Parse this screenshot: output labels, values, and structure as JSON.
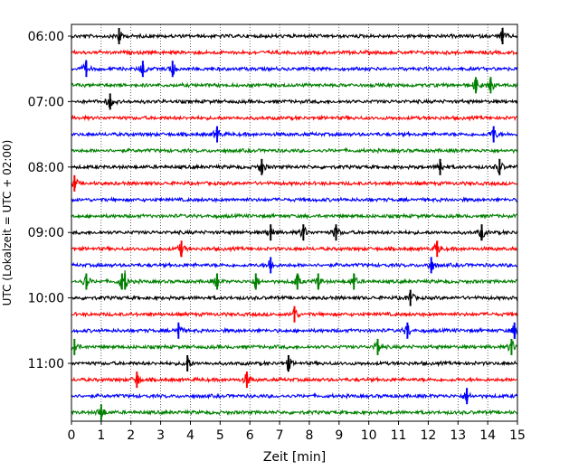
{
  "chart_data": {
    "type": "line",
    "title": "",
    "xlabel": "Zeit  [min]",
    "ylabel": "UTC (Lokalzeit = UTC + 02:00)",
    "xlim": [
      0,
      15
    ],
    "x_ticks": [
      "0",
      "1",
      "2",
      "3",
      "4",
      "5",
      "6",
      "7",
      "8",
      "9",
      "10",
      "11",
      "12",
      "13",
      "14",
      "15"
    ],
    "y_ticks": [
      "06:00",
      "07:00",
      "08:00",
      "09:00",
      "10:00",
      "11:00"
    ],
    "grid": "vertical dotted",
    "colors": [
      "#000000",
      "#ff0000",
      "#0000ff",
      "#008000"
    ],
    "rows": [
      {
        "time": "06:00",
        "color": "#000000",
        "events": [
          1.6,
          14.5
        ]
      },
      {
        "time": "06:15",
        "color": "#ff0000",
        "events": []
      },
      {
        "time": "06:30",
        "color": "#0000ff",
        "events": [
          0.5,
          2.4,
          3.4
        ]
      },
      {
        "time": "06:45",
        "color": "#008000",
        "events": [
          13.6,
          14.1
        ]
      },
      {
        "time": "07:00",
        "color": "#000000",
        "events": [
          1.3
        ]
      },
      {
        "time": "07:15",
        "color": "#ff0000",
        "events": []
      },
      {
        "time": "07:30",
        "color": "#0000ff",
        "events": [
          4.9,
          14.2
        ]
      },
      {
        "time": "07:45",
        "color": "#008000",
        "events": []
      },
      {
        "time": "08:00",
        "color": "#000000",
        "events": [
          6.4,
          12.4,
          14.4
        ]
      },
      {
        "time": "08:15",
        "color": "#ff0000",
        "events": [
          0.1
        ]
      },
      {
        "time": "08:30",
        "color": "#0000ff",
        "events": []
      },
      {
        "time": "08:45",
        "color": "#008000",
        "events": []
      },
      {
        "time": "09:00",
        "color": "#000000",
        "events": [
          6.7,
          7.8,
          8.9,
          13.8
        ]
      },
      {
        "time": "09:15",
        "color": "#ff0000",
        "events": [
          3.7,
          12.3
        ]
      },
      {
        "time": "09:30",
        "color": "#0000ff",
        "events": [
          6.7,
          12.1
        ]
      },
      {
        "time": "09:45",
        "color": "#008000",
        "events": [
          0.5,
          1.7,
          1.8,
          4.9,
          6.2,
          7.6,
          8.3,
          9.5
        ]
      },
      {
        "time": "10:00",
        "color": "#000000",
        "events": [
          11.4
        ]
      },
      {
        "time": "10:15",
        "color": "#ff0000",
        "events": [
          7.5
        ]
      },
      {
        "time": "10:30",
        "color": "#0000ff",
        "events": [
          3.6,
          11.3,
          14.9
        ]
      },
      {
        "time": "10:45",
        "color": "#008000",
        "events": [
          0.1,
          10.3,
          14.8
        ]
      },
      {
        "time": "11:00",
        "color": "#000000",
        "events": [
          3.9,
          7.3
        ]
      },
      {
        "time": "11:15",
        "color": "#ff0000",
        "events": [
          2.2,
          5.9
        ]
      },
      {
        "time": "11:30",
        "color": "#0000ff",
        "events": [
          13.3
        ]
      },
      {
        "time": "11:45",
        "color": "#008000",
        "events": [
          1.0
        ]
      }
    ]
  }
}
